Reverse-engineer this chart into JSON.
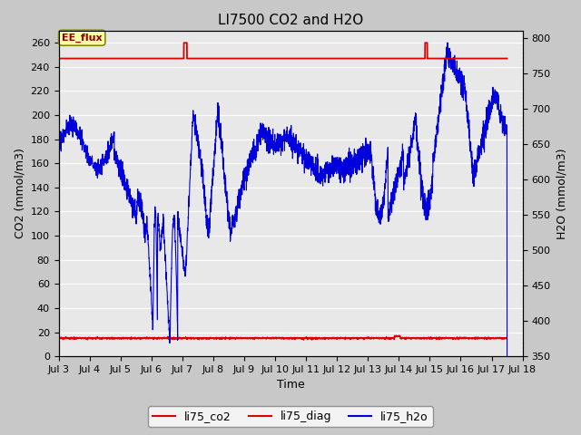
{
  "title": "LI7500 CO2 and H2O",
  "xlabel": "Time",
  "ylabel_left": "CO2 (mmol/m3)",
  "ylabel_right": "H2O (mmol/m3)",
  "ylim_left": [
    0,
    270
  ],
  "ylim_right": [
    350,
    810
  ],
  "yticks_left": [
    0,
    20,
    40,
    60,
    80,
    100,
    120,
    140,
    160,
    180,
    200,
    220,
    240,
    260
  ],
  "yticks_right": [
    350,
    400,
    450,
    500,
    550,
    600,
    650,
    700,
    750,
    800
  ],
  "xlim": [
    3,
    18
  ],
  "xtick_positions": [
    3,
    4,
    5,
    6,
    7,
    8,
    9,
    10,
    11,
    12,
    13,
    14,
    15,
    16,
    17,
    18
  ],
  "xtick_labels": [
    "Jul 3",
    "Jul 4",
    "Jul 5",
    "Jul 6",
    "Jul 7",
    "Jul 8",
    "Jul 9",
    "Jul 10",
    "Jul 11",
    "Jul 12",
    "Jul 13",
    "Jul 14",
    "Jul 15",
    "Jul 16",
    "Jul 17",
    "Jul 18"
  ],
  "fig_facecolor": "#c8c8c8",
  "axes_facecolor": "#e8e8e8",
  "grid_color": "#ffffff",
  "legend_labels": [
    "li75_co2",
    "li75_diag",
    "li75_h2o"
  ],
  "legend_colors": [
    "#dd0000",
    "#dd0000",
    "#0000dd"
  ],
  "legend_linestyles": [
    "-",
    "-",
    "-"
  ],
  "ee_flux_label": "EE_flux",
  "ee_flux_box_facecolor": "#ffffaa",
  "ee_flux_box_edgecolor": "#888800",
  "co2_line_color": "#dd0000",
  "diag_line_color": "#dd0000",
  "h2o_line_color": "#0000dd",
  "co2_flat_value": 247.0,
  "diag_flat_value": 15.0,
  "title_fontsize": 11,
  "axis_label_fontsize": 9,
  "tick_fontsize": 8,
  "legend_fontsize": 9
}
